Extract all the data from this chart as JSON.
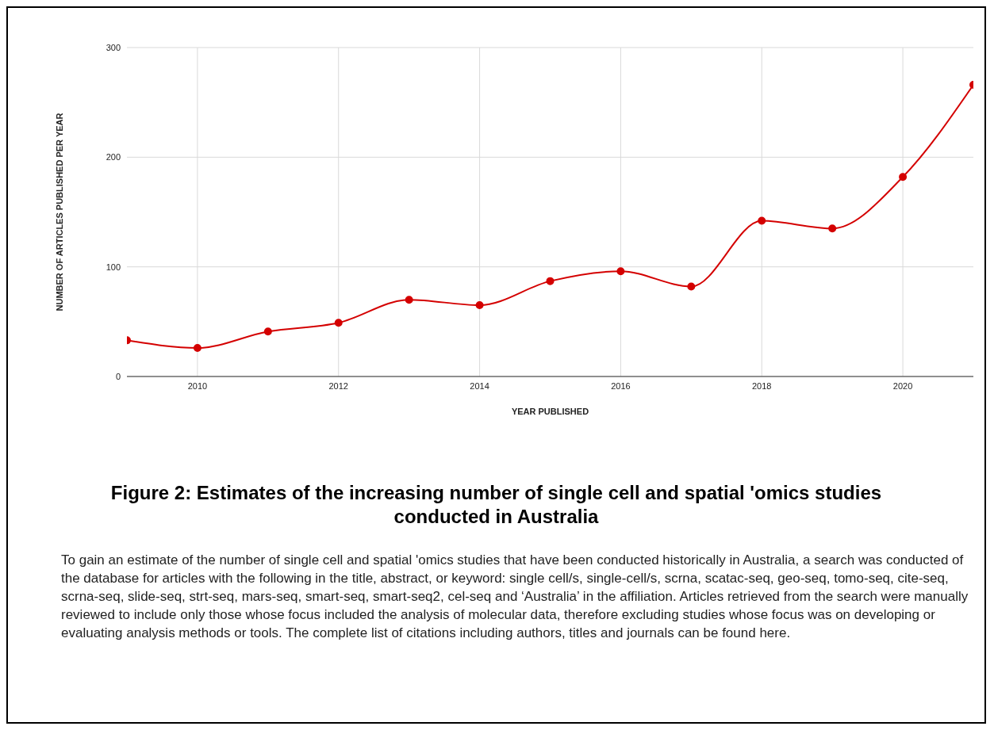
{
  "chart_data": {
    "type": "line",
    "title": "Figure 2: Estimates of the increasing number of single cell and spatial 'omics studies conducted in Australia",
    "xlabel": "YEAR PUBLISHED",
    "ylabel": "NUMBER OF ARTICLES PUBLISHED PER YEAR",
    "x": [
      2009,
      2010,
      2011,
      2012,
      2013,
      2014,
      2015,
      2016,
      2017,
      2018,
      2019,
      2020,
      2021
    ],
    "series": [
      {
        "color": "#d40000",
        "values": [
          33,
          26,
          41,
          49,
          70,
          65,
          87,
          96,
          82,
          142,
          135,
          182,
          266
        ]
      }
    ],
    "xlim": [
      2009,
      2021
    ],
    "xticks": [
      2010,
      2012,
      2014,
      2016,
      2018,
      2020
    ],
    "ylim": [
      0,
      300
    ],
    "yticks": [
      0,
      100,
      200,
      300
    ],
    "grid": true,
    "legend": false,
    "marker": "circle",
    "line_style": "solid",
    "annotations": [
      "To gain an estimate of the number of single cell and spatial 'omics studies that have been conducted historically in Australia, a search was conducted of the database for articles with the following in the title, abstract, or keyword: single cell/s, single-cell/s, scrna, scatac-seq, geo-seq, tomo-seq, cite-seq, scrna-seq, slide-seq, strt-seq, mars-seq, smart-seq, smart-seq2, cel-seq and ‘Australia’ in the affiliation. Articles retrieved from the search were manually reviewed to include only those whose focus included the analysis of molecular data, therefore excluding studies whose focus was on developing or evaluating analysis methods or tools. The complete list of citations including authors, titles and journals can be found here."
    ]
  }
}
